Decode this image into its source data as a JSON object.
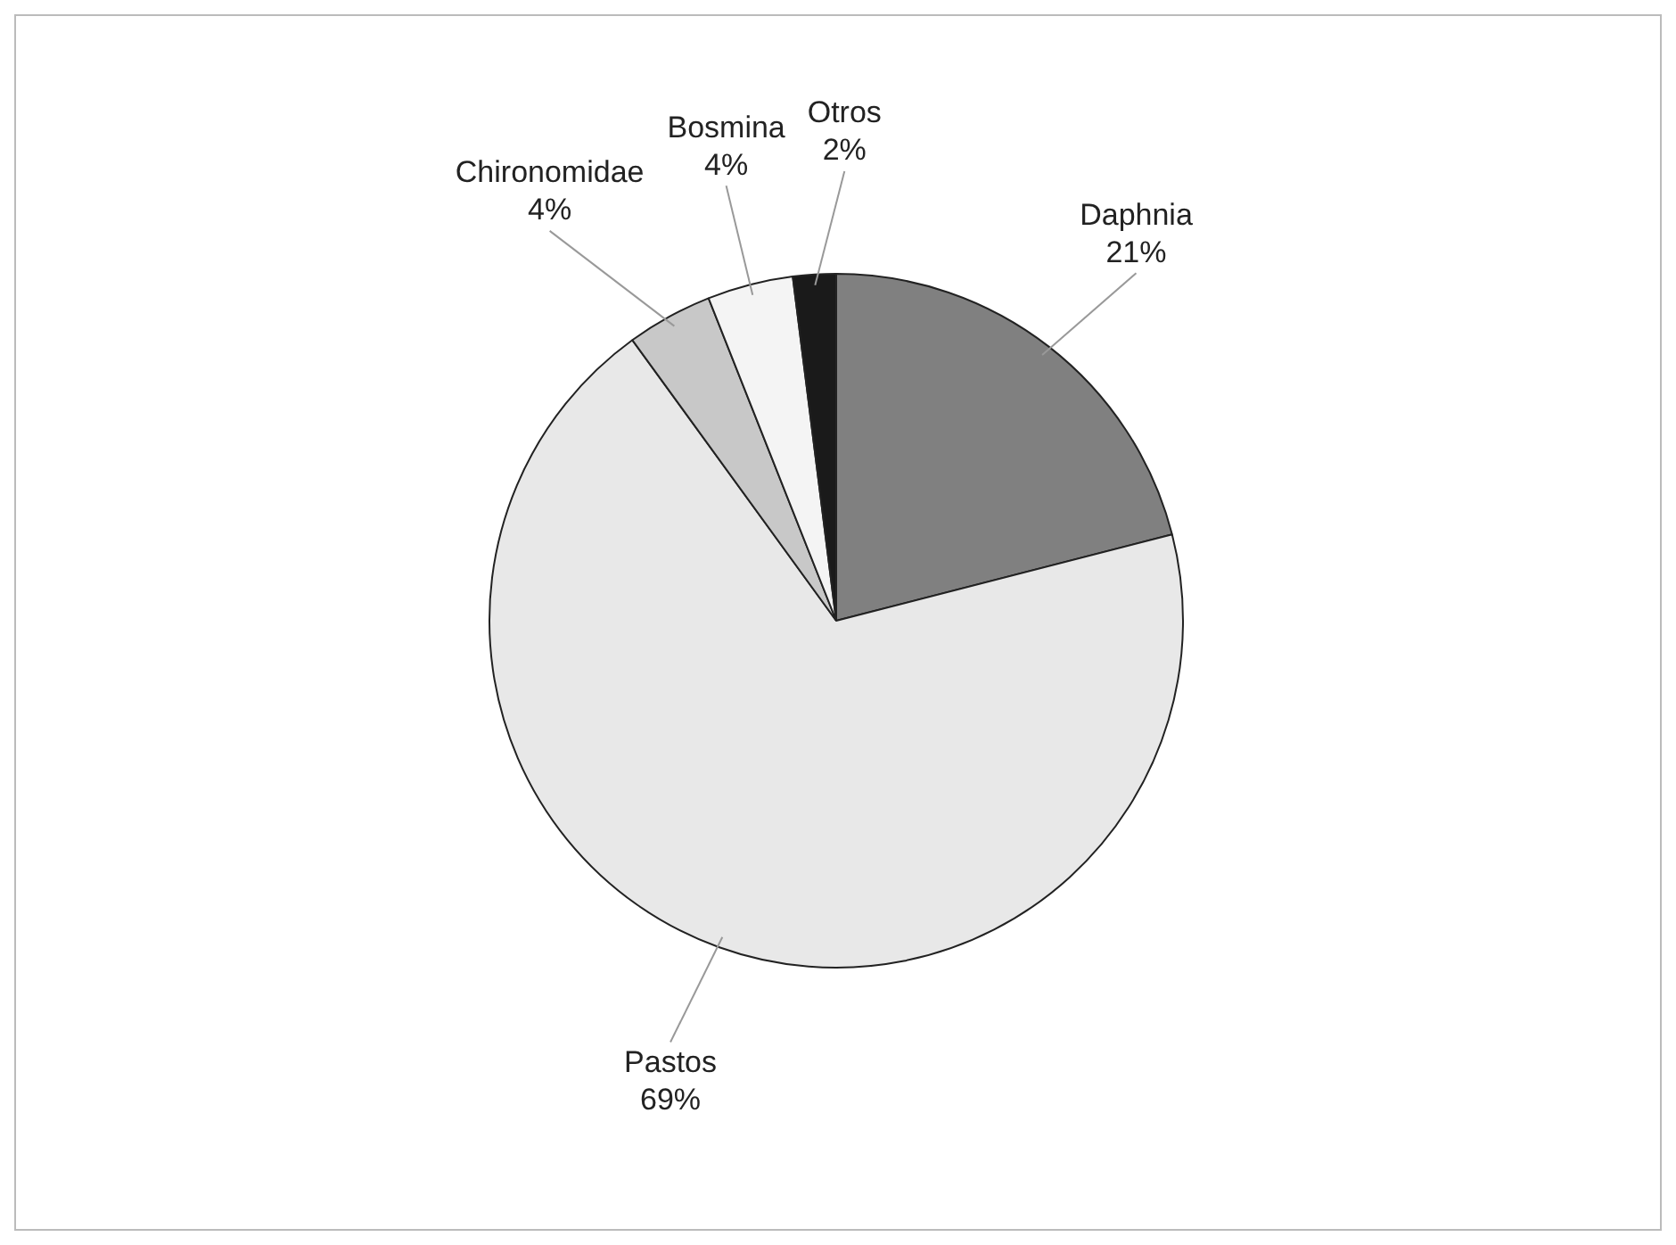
{
  "chart_data": {
    "type": "pie",
    "categories": [
      "Daphnia",
      "Pastos",
      "Chironomidae",
      "Bosmina",
      "Otros"
    ],
    "values": [
      21,
      69,
      4,
      4,
      2
    ],
    "value_labels": [
      "21%",
      "69%",
      "4%",
      "4%",
      "2%"
    ],
    "colors": [
      "#808080",
      "#e8e8e8",
      "#c8c8c8",
      "#f4f4f4",
      "#1a1a1a"
    ],
    "legend": false
  }
}
